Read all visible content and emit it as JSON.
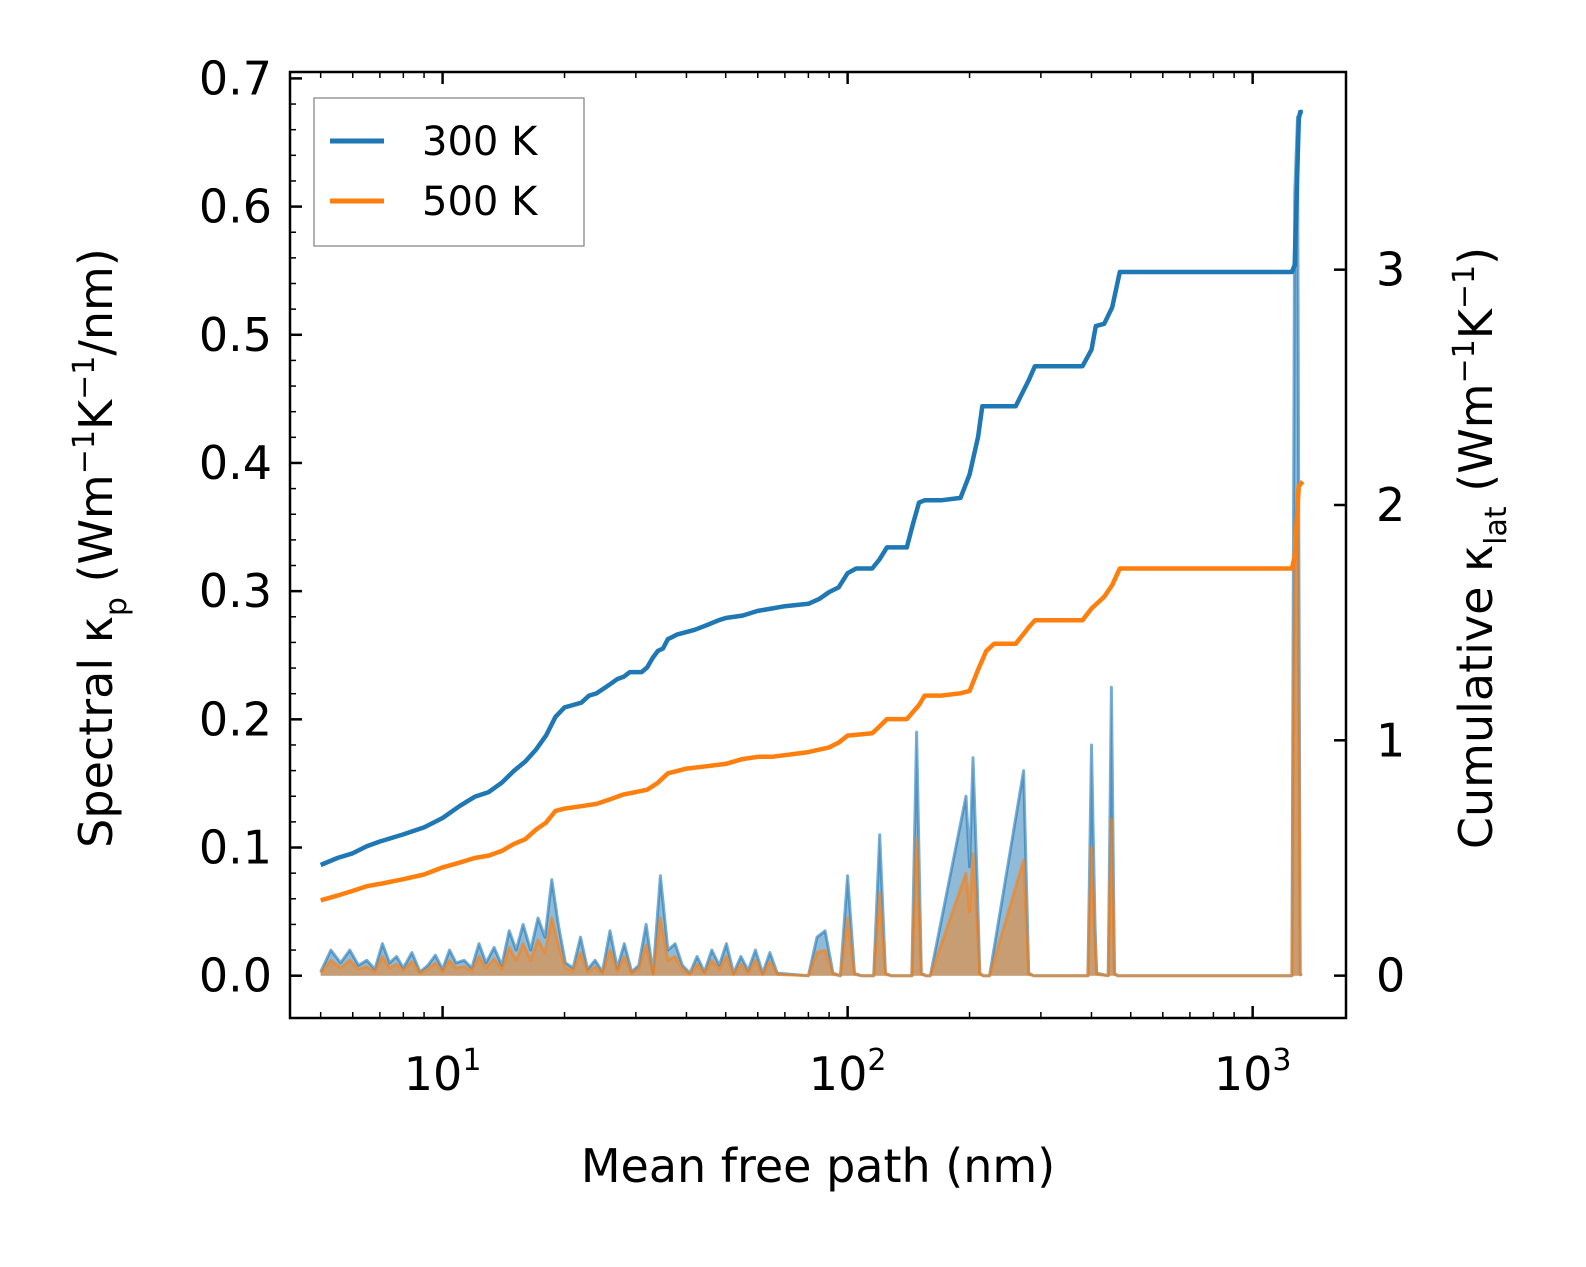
{
  "chart_data": {
    "type": "line",
    "xscale": "log",
    "xlim": [
      4.2,
      1700
    ],
    "left_ylim": [
      -0.033,
      0.705
    ],
    "right_ylim": [
      -0.18,
      3.84
    ],
    "xlabel": "Mean free path (nm)",
    "ylabel_left": {
      "prefix": "Spectral κ",
      "sub": "p",
      "unit_open": " (Wm",
      "sup1": "−1",
      "mid": "K",
      "sup2": "−1",
      "unit_close": "/nm)"
    },
    "ylabel_right": {
      "prefix": "Cumulative κ",
      "sub": "lat",
      "unit_open": " (Wm",
      "sup1": "−1",
      "mid": "K",
      "sup2": "−1",
      "unit_close": ")"
    },
    "left_ticks": [
      "0.0",
      "0.1",
      "0.2",
      "0.3",
      "0.4",
      "0.5",
      "0.6",
      "0.7"
    ],
    "left_tick_values": [
      0,
      0.1,
      0.2,
      0.3,
      0.4,
      0.5,
      0.6,
      0.7
    ],
    "right_ticks": [
      "0",
      "1",
      "2",
      "3"
    ],
    "right_tick_values": [
      0,
      1,
      2,
      3
    ],
    "x_ticks": [
      {
        "value": 10,
        "base": "10",
        "exp": "1"
      },
      {
        "value": 100,
        "base": "10",
        "exp": "2"
      },
      {
        "value": 1000,
        "base": "10",
        "exp": "3"
      }
    ],
    "legend": {
      "position": "top-left",
      "entries": [
        {
          "label": "300 K",
          "color": "#1f77b4"
        },
        {
          "label": "500 K",
          "color": "#ff7f0e"
        }
      ]
    },
    "series": [
      {
        "name": "300 K",
        "kind": "cumulative",
        "axis": "right",
        "color": "#1f77b4",
        "x": [
          5,
          5.5,
          6,
          6.5,
          7,
          8,
          9,
          10,
          11,
          12,
          13,
          14,
          15,
          16,
          17,
          18,
          19,
          20,
          21,
          22,
          23,
          24,
          25,
          26,
          27,
          28,
          29,
          30,
          31,
          32,
          33,
          34,
          35,
          36,
          37,
          38,
          40,
          42,
          45,
          48,
          50,
          55,
          60,
          65,
          70,
          80,
          85,
          90,
          95,
          100,
          105,
          115,
          120,
          125,
          140,
          145,
          150,
          155,
          170,
          190,
          200,
          210,
          215,
          230,
          260,
          280,
          290,
          310,
          380,
          400,
          410,
          430,
          450,
          470,
          600,
          1000,
          1250,
          1270,
          1300,
          1310,
          1330
        ],
        "y": [
          0.47,
          0.5,
          0.52,
          0.55,
          0.57,
          0.6,
          0.63,
          0.67,
          0.72,
          0.76,
          0.78,
          0.82,
          0.87,
          0.91,
          0.96,
          1.02,
          1.1,
          1.14,
          1.15,
          1.16,
          1.19,
          1.2,
          1.22,
          1.24,
          1.26,
          1.27,
          1.29,
          1.29,
          1.29,
          1.31,
          1.35,
          1.38,
          1.39,
          1.43,
          1.44,
          1.45,
          1.46,
          1.47,
          1.49,
          1.51,
          1.52,
          1.53,
          1.55,
          1.56,
          1.57,
          1.58,
          1.6,
          1.63,
          1.65,
          1.71,
          1.73,
          1.73,
          1.77,
          1.82,
          1.82,
          1.92,
          2.01,
          2.02,
          2.02,
          2.03,
          2.13,
          2.29,
          2.42,
          2.42,
          2.42,
          2.53,
          2.59,
          2.59,
          2.59,
          2.66,
          2.76,
          2.77,
          2.84,
          2.99,
          2.99,
          2.99,
          2.99,
          3.02,
          3.64,
          3.67,
          3.67
        ]
      },
      {
        "name": "500 K",
        "kind": "cumulative",
        "axis": "right",
        "color": "#ff7f0e",
        "x": [
          5,
          5.5,
          6,
          6.5,
          7,
          8,
          9,
          10,
          11,
          12,
          13,
          14,
          15,
          16,
          17,
          18,
          19,
          20,
          22,
          24,
          26,
          28,
          30,
          32,
          34,
          36,
          38,
          40,
          45,
          50,
          55,
          60,
          65,
          80,
          85,
          90,
          95,
          100,
          115,
          120,
          125,
          140,
          150,
          155,
          170,
          190,
          200,
          210,
          220,
          230,
          260,
          280,
          290,
          320,
          380,
          400,
          430,
          450,
          470,
          600,
          1000,
          1250,
          1270,
          1300,
          1330
        ],
        "y": [
          0.32,
          0.34,
          0.36,
          0.38,
          0.39,
          0.41,
          0.43,
          0.46,
          0.48,
          0.5,
          0.51,
          0.53,
          0.56,
          0.58,
          0.62,
          0.65,
          0.7,
          0.71,
          0.72,
          0.73,
          0.75,
          0.77,
          0.78,
          0.79,
          0.82,
          0.86,
          0.87,
          0.88,
          0.89,
          0.9,
          0.92,
          0.93,
          0.93,
          0.95,
          0.96,
          0.97,
          0.99,
          1.02,
          1.03,
          1.06,
          1.09,
          1.09,
          1.15,
          1.19,
          1.19,
          1.2,
          1.21,
          1.3,
          1.38,
          1.41,
          1.41,
          1.48,
          1.51,
          1.51,
          1.51,
          1.56,
          1.61,
          1.66,
          1.73,
          1.73,
          1.73,
          1.73,
          1.78,
          2.08,
          2.1
        ]
      },
      {
        "name": "300 K",
        "kind": "spectral",
        "axis": "left",
        "color": "#1f77b4",
        "x": [
          5,
          5.3,
          5.6,
          5.9,
          6.2,
          6.5,
          6.8,
          7.1,
          7.4,
          7.7,
          8.0,
          8.4,
          8.8,
          9.2,
          9.6,
          10.0,
          10.4,
          10.8,
          11.3,
          11.8,
          12.3,
          12.8,
          13.4,
          14.0,
          14.6,
          15.2,
          15.8,
          16.5,
          17.2,
          17.9,
          18.6,
          19.3,
          20.1,
          21.0,
          21.9,
          22.8,
          23.8,
          24.8,
          25.9,
          27.0,
          28.1,
          29.3,
          30.5,
          31.8,
          33.1,
          34.5,
          36.0,
          37.5,
          39.1,
          40.8,
          42.5,
          44.3,
          46.2,
          48.2,
          50.2,
          52.3,
          54.5,
          56.8,
          59.2,
          61.7,
          64.3,
          67.0,
          80,
          84,
          88,
          92,
          96,
          100,
          104,
          108,
          116,
          120,
          124,
          128,
          144,
          148,
          152,
          156,
          160,
          196,
          200,
          204,
          208,
          212,
          216,
          220,
          224,
          272,
          280,
          288,
          392,
          400,
          408,
          412,
          440,
          448,
          456,
          464,
          1250,
          1270,
          1290,
          1310,
          1320
        ],
        "y": [
          0.003,
          0.02,
          0.01,
          0.02,
          0.008,
          0.012,
          0.005,
          0.025,
          0.01,
          0.015,
          0.006,
          0.018,
          0.003,
          0.008,
          0.016,
          0.005,
          0.02,
          0.01,
          0.012,
          0.006,
          0.025,
          0.01,
          0.022,
          0.008,
          0.035,
          0.02,
          0.04,
          0.02,
          0.045,
          0.03,
          0.075,
          0.04,
          0.01,
          0.006,
          0.03,
          0.005,
          0.012,
          0.003,
          0.035,
          0.006,
          0.025,
          0.003,
          0.008,
          0.04,
          0.002,
          0.078,
          0.02,
          0.025,
          0.008,
          0.002,
          0.015,
          0.003,
          0.02,
          0.008,
          0.025,
          0.002,
          0.015,
          0.004,
          0.02,
          0.002,
          0.018,
          0.002,
          0.0,
          0.03,
          0.035,
          0.002,
          0.0,
          0.078,
          0.002,
          0.0,
          0.0,
          0.11,
          0.002,
          0.0,
          0.0,
          0.19,
          0.002,
          0.0,
          0.0,
          0.14,
          0.085,
          0.17,
          0.09,
          0.002,
          0.0,
          0.0,
          0.0,
          0.16,
          0.002,
          0.0,
          0.0,
          0.18,
          0.04,
          0.002,
          0.0,
          0.225,
          0.002,
          0.0,
          0.0,
          0.61,
          0.67,
          0.002,
          0.0
        ]
      },
      {
        "name": "500 K",
        "kind": "spectral",
        "axis": "left",
        "color": "#ff7f0e",
        "x": [
          5,
          5.3,
          5.6,
          5.9,
          6.2,
          6.5,
          6.8,
          7.1,
          7.4,
          7.7,
          8.0,
          8.4,
          8.8,
          9.2,
          9.6,
          10.0,
          10.4,
          10.8,
          11.3,
          11.8,
          12.3,
          12.8,
          13.4,
          14.0,
          14.6,
          15.2,
          15.8,
          16.5,
          17.2,
          17.9,
          18.6,
          19.3,
          20.1,
          21.0,
          21.9,
          22.8,
          23.8,
          24.8,
          25.9,
          27.0,
          28.1,
          29.3,
          30.5,
          31.8,
          33.1,
          34.5,
          36.0,
          37.5,
          39.1,
          40.8,
          42.5,
          44.3,
          46.2,
          48.2,
          50.2,
          52.3,
          54.5,
          56.8,
          59.2,
          61.7,
          64.3,
          67.0,
          80,
          84,
          88,
          92,
          96,
          100,
          104,
          108,
          116,
          120,
          124,
          128,
          144,
          148,
          152,
          156,
          160,
          196,
          200,
          204,
          208,
          212,
          216,
          220,
          224,
          272,
          280,
          288,
          392,
          400,
          408,
          412,
          440,
          448,
          456,
          464,
          1250,
          1270,
          1290,
          1310,
          1320
        ],
        "y": [
          0.002,
          0.012,
          0.006,
          0.012,
          0.005,
          0.007,
          0.003,
          0.015,
          0.006,
          0.009,
          0.004,
          0.011,
          0.002,
          0.005,
          0.01,
          0.003,
          0.012,
          0.006,
          0.007,
          0.004,
          0.015,
          0.006,
          0.013,
          0.005,
          0.022,
          0.012,
          0.025,
          0.012,
          0.028,
          0.018,
          0.045,
          0.024,
          0.006,
          0.004,
          0.018,
          0.003,
          0.007,
          0.002,
          0.02,
          0.004,
          0.015,
          0.002,
          0.005,
          0.024,
          0.001,
          0.045,
          0.012,
          0.015,
          0.005,
          0.001,
          0.009,
          0.002,
          0.012,
          0.005,
          0.015,
          0.001,
          0.009,
          0.002,
          0.012,
          0.001,
          0.011,
          0.001,
          0.0,
          0.018,
          0.02,
          0.001,
          0.0,
          0.045,
          0.001,
          0.0,
          0.0,
          0.064,
          0.001,
          0.0,
          0.0,
          0.108,
          0.001,
          0.0,
          0.0,
          0.08,
          0.05,
          0.095,
          0.052,
          0.001,
          0.0,
          0.0,
          0.0,
          0.09,
          0.001,
          0.0,
          0.0,
          0.1,
          0.024,
          0.001,
          0.0,
          0.122,
          0.001,
          0.0,
          0.0,
          0.33,
          0.38,
          0.001,
          0.0
        ]
      }
    ]
  }
}
